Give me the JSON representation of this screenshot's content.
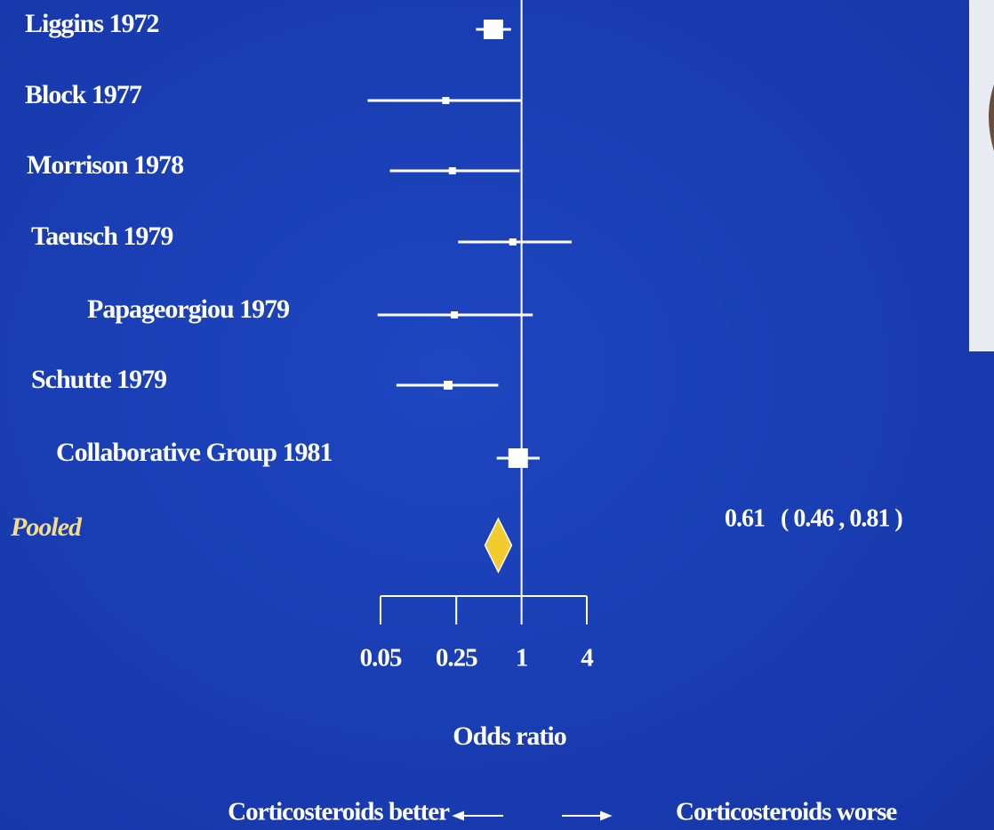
{
  "chart_data": {
    "type": "forest",
    "x_label": "Odds ratio",
    "log_scale": true,
    "xlim": [
      0.05,
      4
    ],
    "xticks": [
      0.05,
      0.25,
      1,
      4
    ],
    "reference_line": 1,
    "color": "#ffffff",
    "pooled_color": "#f2cc2c",
    "studies": [
      {
        "name": "Liggins 1972",
        "value": 0.55,
        "lower": 0.38,
        "upper": 0.8
      },
      {
        "name": "Block 1977",
        "value": 0.2,
        "lower": 0.038,
        "upper": 1.0
      },
      {
        "name": "Morrison 1978",
        "value": 0.23,
        "lower": 0.061,
        "upper": 0.96
      },
      {
        "name": "Taeusch 1979",
        "value": 0.83,
        "lower": 0.26,
        "upper": 2.9
      },
      {
        "name": "Papageorgiou 1979",
        "value": 0.24,
        "lower": 0.047,
        "upper": 1.27
      },
      {
        "name": "Schutte 1979",
        "value": 0.21,
        "lower": 0.07,
        "upper": 0.61
      },
      {
        "name": "Collaborative Group 1981",
        "value": 0.93,
        "lower": 0.59,
        "upper": 1.47
      }
    ],
    "pooled": {
      "name": "Pooled",
      "value": 0.61,
      "lower": 0.46,
      "upper": 0.81,
      "label": "0.61   ( 0.46 , 0.81 )"
    },
    "annotations": [
      "Corticosteroids  better",
      "Corticosteroids worse"
    ]
  }
}
